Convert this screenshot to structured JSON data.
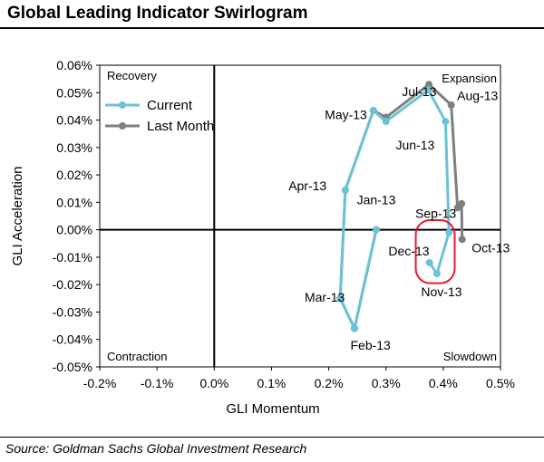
{
  "title": "Global Leading Indicator Swirlogram",
  "source": "Source: Goldman Sachs Global Investment Research",
  "colors": {
    "current": "#6cc3d5",
    "last_month": "#7f7f7f",
    "highlight": "#e8192c"
  },
  "chart_data": {
    "type": "scatter",
    "connected": true,
    "title": "",
    "xlabel": "GLI Momentum",
    "ylabel": "GLI Acceleration",
    "xlim": [
      -0.2,
      0.5
    ],
    "ylim": [
      -0.05,
      0.06
    ],
    "x_ticks": [
      -0.2,
      -0.1,
      0.0,
      0.1,
      0.2,
      0.3,
      0.4,
      0.5
    ],
    "x_tick_labels": [
      "-0.2%",
      "-0.1%",
      "0.0%",
      "0.1%",
      "0.2%",
      "0.3%",
      "0.4%",
      "0.5%"
    ],
    "y_ticks": [
      0.06,
      0.05,
      0.04,
      0.03,
      0.02,
      0.01,
      0.0,
      -0.01,
      -0.02,
      -0.03,
      -0.04,
      -0.05
    ],
    "y_tick_labels": [
      "0.06%",
      "0.05%",
      "0.04%",
      "0.03%",
      "0.02%",
      "0.01%",
      "0.00%",
      "-0.01%",
      "-0.02%",
      "-0.03%",
      "-0.04%",
      "-0.05%"
    ],
    "quadrants": {
      "top_left": "Recovery",
      "top_right": "Expansion",
      "bottom_left": "Contraction",
      "bottom_right": "Slowdown"
    },
    "legend_position": "top-left",
    "series": [
      {
        "name": "Last Month",
        "color": "#7f7f7f",
        "points": [
          {
            "x": 0.283,
            "y": 0.0
          },
          {
            "x": 0.245,
            "y": -0.036
          },
          {
            "x": 0.22,
            "y": -0.025
          },
          {
            "x": 0.229,
            "y": 0.0145
          },
          {
            "x": 0.278,
            "y": 0.0435
          },
          {
            "x": 0.3,
            "y": 0.041
          },
          {
            "x": 0.375,
            "y": 0.053
          },
          {
            "x": 0.414,
            "y": 0.0455
          },
          {
            "x": 0.425,
            "y": 0.008
          },
          {
            "x": 0.432,
            "y": 0.0095
          },
          {
            "x": 0.433,
            "y": -0.0035
          }
        ]
      },
      {
        "name": "Current",
        "color": "#6cc3d5",
        "points": [
          {
            "x": 0.283,
            "y": 0.0
          },
          {
            "x": 0.245,
            "y": -0.036
          },
          {
            "x": 0.22,
            "y": -0.025
          },
          {
            "x": 0.229,
            "y": 0.0145
          },
          {
            "x": 0.278,
            "y": 0.0435
          },
          {
            "x": 0.3,
            "y": 0.0395
          },
          {
            "x": 0.374,
            "y": 0.051
          },
          {
            "x": 0.404,
            "y": 0.0395
          },
          {
            "x": 0.41,
            "y": -0.001
          },
          {
            "x": 0.389,
            "y": -0.016
          },
          {
            "x": 0.376,
            "y": -0.012
          }
        ]
      }
    ],
    "annotations": [
      {
        "text": "Jan-13",
        "x": 0.283,
        "y": 0.011
      },
      {
        "text": "Feb-13",
        "x": 0.273,
        "y": -0.042
      },
      {
        "text": "Mar-13",
        "x": 0.193,
        "y": -0.0245
      },
      {
        "text": "Apr-13",
        "x": 0.163,
        "y": 0.016
      },
      {
        "text": "May-13",
        "x": 0.23,
        "y": 0.042
      },
      {
        "text": "Jun-13",
        "x": 0.351,
        "y": 0.031
      },
      {
        "text": "Jul-13",
        "x": 0.358,
        "y": 0.0505
      },
      {
        "text": "Aug-13",
        "x": 0.46,
        "y": 0.049
      },
      {
        "text": "Sep-13",
        "x": 0.387,
        "y": 0.006
      },
      {
        "text": "Oct-13",
        "x": 0.483,
        "y": -0.0065
      },
      {
        "text": "Nov-13",
        "x": 0.397,
        "y": -0.0225
      },
      {
        "text": "Dec-13",
        "x": 0.34,
        "y": -0.0077
      }
    ],
    "highlight": {
      "shape": "rounded-rectangle",
      "x_range": [
        0.352,
        0.42
      ],
      "y_range": [
        -0.0195,
        0.0035
      ]
    }
  }
}
